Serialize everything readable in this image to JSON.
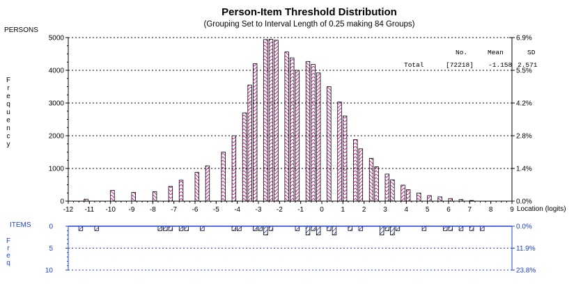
{
  "chart_data": {
    "type": "bar",
    "title": "Person-Item Threshold Distribution",
    "subtitle": "(Grouping Set to Interval Length of 0.25  making 84  Groups)",
    "persons_label": "PERSONS",
    "frequency_label": "Frequency",
    "xlabel": "Location (logits)",
    "x_ticks": [
      -12,
      -11,
      -10,
      -9,
      -8,
      -7,
      -6,
      -5,
      -4,
      -3,
      -2,
      -1,
      0,
      1,
      2,
      3,
      4,
      5,
      6,
      7,
      8,
      9
    ],
    "xlim": [
      -12,
      9
    ],
    "persons": {
      "ylim": [
        0,
        5000
      ],
      "y_ticks": [
        0,
        1000,
        2000,
        3000,
        4000,
        5000
      ],
      "pct_ticks": [
        "0.0%",
        "1.4%",
        "2.8%",
        "4.2%",
        "5.5%",
        "6.9%"
      ],
      "bar_color": "#cc2a9c",
      "bars": [
        {
          "x": -11.25,
          "y": 60
        },
        {
          "x": -10.0,
          "y": 330
        },
        {
          "x": -9.0,
          "y": 270
        },
        {
          "x": -8.0,
          "y": 290
        },
        {
          "x": -7.25,
          "y": 450
        },
        {
          "x": -6.75,
          "y": 640
        },
        {
          "x": -6.0,
          "y": 880
        },
        {
          "x": -5.5,
          "y": 1080
        },
        {
          "x": -4.75,
          "y": 1500
        },
        {
          "x": -4.25,
          "y": 2000
        },
        {
          "x": -3.75,
          "y": 2700
        },
        {
          "x": -3.5,
          "y": 3550
        },
        {
          "x": -3.25,
          "y": 4200
        },
        {
          "x": -2.75,
          "y": 4940
        },
        {
          "x": -2.5,
          "y": 4950
        },
        {
          "x": -2.25,
          "y": 4920
        },
        {
          "x": -1.75,
          "y": 4560
        },
        {
          "x": -1.5,
          "y": 4380
        },
        {
          "x": -1.25,
          "y": 4000
        },
        {
          "x": -0.75,
          "y": 4270
        },
        {
          "x": -0.5,
          "y": 4180
        },
        {
          "x": -0.25,
          "y": 3920
        },
        {
          "x": 0.25,
          "y": 3500
        },
        {
          "x": 0.75,
          "y": 3030
        },
        {
          "x": 1.0,
          "y": 2600
        },
        {
          "x": 1.5,
          "y": 1880
        },
        {
          "x": 1.75,
          "y": 1600
        },
        {
          "x": 2.25,
          "y": 1310
        },
        {
          "x": 2.5,
          "y": 1050
        },
        {
          "x": 3.0,
          "y": 830
        },
        {
          "x": 3.25,
          "y": 650
        },
        {
          "x": 3.75,
          "y": 490
        },
        {
          "x": 4.0,
          "y": 350
        },
        {
          "x": 4.5,
          "y": 250
        },
        {
          "x": 5.0,
          "y": 170
        },
        {
          "x": 5.5,
          "y": 130
        },
        {
          "x": 6.0,
          "y": 80
        },
        {
          "x": 6.5,
          "y": 50
        },
        {
          "x": 7.0,
          "y": 20
        }
      ]
    },
    "stats": {
      "headers": [
        "No.",
        "Mean",
        "SD"
      ],
      "row_label": "Total",
      "values": [
        "[72218]",
        "-1.158",
        "2.571"
      ]
    },
    "items": {
      "label": "ITEMS",
      "freq_label": "Freq",
      "ylim": [
        0,
        10
      ],
      "y_ticks": [
        0,
        5,
        10
      ],
      "pct_ticks": [
        "0.0%",
        "11.9%",
        "23.8%"
      ],
      "bar_color": "#1f3fd6",
      "bars": [
        {
          "x": -11.5,
          "y": 1
        },
        {
          "x": -10.75,
          "y": 1
        },
        {
          "x": -7.75,
          "y": 1
        },
        {
          "x": -7.5,
          "y": 1
        },
        {
          "x": -7.25,
          "y": 1
        },
        {
          "x": -6.75,
          "y": 1
        },
        {
          "x": -6.5,
          "y": 1
        },
        {
          "x": -5.75,
          "y": 1
        },
        {
          "x": -4.25,
          "y": 1
        },
        {
          "x": -4.0,
          "y": 1
        },
        {
          "x": -3.25,
          "y": 1
        },
        {
          "x": -3.0,
          "y": 1
        },
        {
          "x": -2.75,
          "y": 2
        },
        {
          "x": -2.5,
          "y": 1
        },
        {
          "x": -1.25,
          "y": 1
        },
        {
          "x": -0.75,
          "y": 2
        },
        {
          "x": -0.5,
          "y": 1
        },
        {
          "x": -0.25,
          "y": 2
        },
        {
          "x": 0.25,
          "y": 1
        },
        {
          "x": 0.5,
          "y": 2
        },
        {
          "x": 1.25,
          "y": 1
        },
        {
          "x": 1.75,
          "y": 1
        },
        {
          "x": 2.75,
          "y": 2
        },
        {
          "x": 3.0,
          "y": 1
        },
        {
          "x": 3.25,
          "y": 2
        },
        {
          "x": 3.5,
          "y": 1
        },
        {
          "x": 4.75,
          "y": 1
        },
        {
          "x": 5.75,
          "y": 1
        },
        {
          "x": 6.0,
          "y": 1
        },
        {
          "x": 6.5,
          "y": 1
        },
        {
          "x": 7.0,
          "y": 1
        },
        {
          "x": 7.5,
          "y": 1
        }
      ]
    }
  }
}
